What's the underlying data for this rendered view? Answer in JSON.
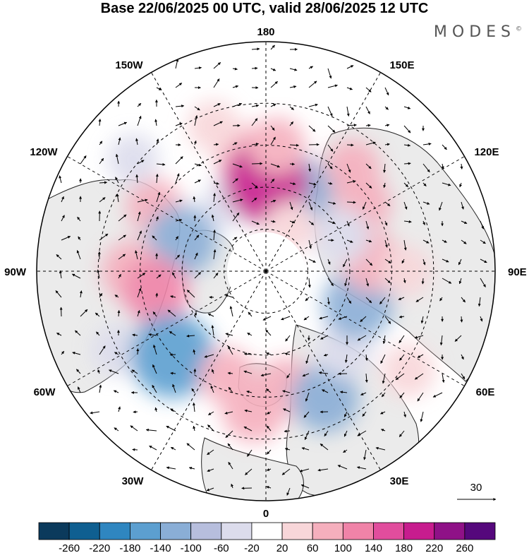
{
  "title": "Base 22/06/2025 00 UTC, valid 28/06/2025 12 UTC",
  "logo": "MODES",
  "logo_mark": "©",
  "longitude_labels": {
    "lon_180": "180",
    "lon_150E": "150E",
    "lon_120E": "120E",
    "lon_90E": "90E",
    "lon_60E": "60E",
    "lon_30E": "30E",
    "lon_0": "0",
    "lon_30W": "30W",
    "lon_60W": "60W",
    "lon_90W": "90W",
    "lon_120W": "120W",
    "lon_150W": "150W"
  },
  "vector_reference": "30",
  "colorbar": {
    "ticks": [
      "-260",
      "-220",
      "-180",
      "-140",
      "-100",
      "-60",
      "-20",
      "20",
      "60",
      "100",
      "140",
      "180",
      "220",
      "260"
    ],
    "colors": [
      "#0b3a5c",
      "#0f5f91",
      "#2f86c0",
      "#5c9fd0",
      "#8aaed6",
      "#b7bedd",
      "#dcdcec",
      "#ffffff",
      "#f8d6d9",
      "#f5afbd",
      "#f083a8",
      "#e14d9d",
      "#c71c8e",
      "#8f1187",
      "#55087c"
    ]
  },
  "anomaly_cells": [
    {
      "lon": -170,
      "lat": 48,
      "value": 70
    },
    {
      "lon": -150,
      "lat": 62,
      "value": -30
    },
    {
      "lon": -120,
      "lat": 44,
      "value": 60
    },
    {
      "lon": -130,
      "lat": 28,
      "value": -40
    },
    {
      "lon": -110,
      "lat": 58,
      "value": -120
    },
    {
      "lon": -90,
      "lat": 42,
      "value": 80
    },
    {
      "lon": -80,
      "lat": 50,
      "value": 100
    },
    {
      "lon": -62,
      "lat": 30,
      "value": -40
    },
    {
      "lon": -48,
      "lat": 45,
      "value": -180
    },
    {
      "lon": -20,
      "lat": 50,
      "value": 60
    },
    {
      "lon": -5,
      "lat": 40,
      "value": 90
    },
    {
      "lon": 10,
      "lat": 48,
      "value": 70
    },
    {
      "lon": 25,
      "lat": 40,
      "value": -110
    },
    {
      "lon": 45,
      "lat": 50,
      "value": -60
    },
    {
      "lon": 55,
      "lat": 28,
      "value": 50
    },
    {
      "lon": 70,
      "lat": 55,
      "value": -120
    },
    {
      "lon": 95,
      "lat": 52,
      "value": 80
    },
    {
      "lon": 90,
      "lat": 40,
      "value": 40
    },
    {
      "lon": 125,
      "lat": 48,
      "value": 70
    },
    {
      "lon": 115,
      "lat": 60,
      "value": -60
    },
    {
      "lon": 140,
      "lat": 42,
      "value": 60
    },
    {
      "lon": 160,
      "lat": 60,
      "value": -140
    },
    {
      "lon": 180,
      "lat": 58,
      "value": 180
    },
    {
      "lon": 175,
      "lat": 45,
      "value": 60
    },
    {
      "lon": 150,
      "lat": 72,
      "value": 40
    },
    {
      "lon": -160,
      "lat": 35,
      "value": 40
    }
  ]
}
